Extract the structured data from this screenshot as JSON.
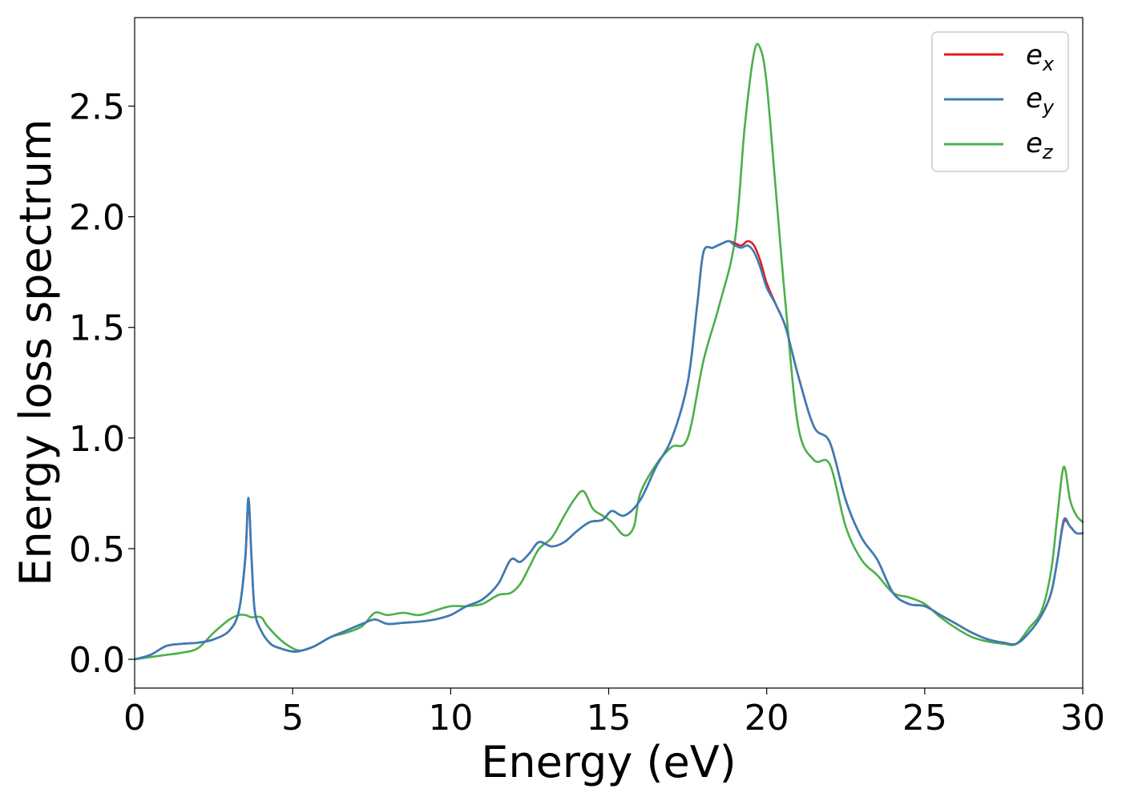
{
  "chart_data": {
    "type": "line",
    "title": "",
    "xlabel": "Energy (eV)",
    "ylabel": "Energy loss spectrum",
    "xlim": [
      0,
      30
    ],
    "ylim": [
      -0.13,
      2.9
    ],
    "xticks": [
      0,
      5,
      10,
      15,
      20,
      25,
      30
    ],
    "xtick_labels": [
      "0",
      "5",
      "10",
      "15",
      "20",
      "25",
      "30"
    ],
    "yticks": [
      0.0,
      0.5,
      1.0,
      1.5,
      2.0,
      2.5
    ],
    "ytick_labels": [
      "0.0",
      "0.5",
      "1.0",
      "1.5",
      "2.0",
      "2.5"
    ],
    "grid": false,
    "legend_position": "top-right",
    "series": [
      {
        "name": "e_x",
        "label_base": "e",
        "label_sub": "x",
        "color": "#e41a1c",
        "x": [
          0,
          0.5,
          1.0,
          1.5,
          2.0,
          2.5,
          3.0,
          3.3,
          3.5,
          3.6,
          3.7,
          3.8,
          4.0,
          4.3,
          4.6,
          5.0,
          5.3,
          5.7,
          6.2,
          6.7,
          7.2,
          7.6,
          8.0,
          8.5,
          9.0,
          9.5,
          10.0,
          10.5,
          11.0,
          11.5,
          11.9,
          12.2,
          12.5,
          12.8,
          13.2,
          13.6,
          14.0,
          14.4,
          14.8,
          15.1,
          15.5,
          16.0,
          16.5,
          17.0,
          17.5,
          17.8,
          18.0,
          18.3,
          18.6,
          18.8,
          19.0,
          19.2,
          19.4,
          19.6,
          19.8,
          20.0,
          20.3,
          20.6,
          21.0,
          21.5,
          22.0,
          22.5,
          23.0,
          23.5,
          24.0,
          24.5,
          25.0,
          25.5,
          26.0,
          26.5,
          27.0,
          27.5,
          27.9,
          28.3,
          28.7,
          29.0,
          29.2,
          29.4,
          29.6,
          29.8,
          30.0
        ],
        "y": [
          0.0,
          0.02,
          0.06,
          0.07,
          0.075,
          0.09,
          0.13,
          0.22,
          0.45,
          0.72,
          0.45,
          0.22,
          0.13,
          0.07,
          0.05,
          0.035,
          0.04,
          0.06,
          0.1,
          0.13,
          0.16,
          0.18,
          0.16,
          0.165,
          0.17,
          0.18,
          0.2,
          0.24,
          0.27,
          0.34,
          0.45,
          0.44,
          0.48,
          0.53,
          0.51,
          0.53,
          0.58,
          0.62,
          0.63,
          0.67,
          0.65,
          0.72,
          0.87,
          1.0,
          1.25,
          1.6,
          1.84,
          1.86,
          1.88,
          1.89,
          1.88,
          1.87,
          1.89,
          1.87,
          1.8,
          1.7,
          1.6,
          1.5,
          1.28,
          1.05,
          0.98,
          0.72,
          0.55,
          0.45,
          0.3,
          0.25,
          0.24,
          0.2,
          0.16,
          0.12,
          0.09,
          0.075,
          0.07,
          0.12,
          0.2,
          0.3,
          0.45,
          0.62,
          0.6,
          0.57,
          0.57
        ]
      },
      {
        "name": "e_y",
        "label_base": "e",
        "label_sub": "y",
        "color": "#377eb8",
        "x": [
          0,
          0.5,
          1.0,
          1.5,
          2.0,
          2.5,
          3.0,
          3.3,
          3.5,
          3.6,
          3.7,
          3.8,
          4.0,
          4.3,
          4.6,
          5.0,
          5.3,
          5.7,
          6.2,
          6.7,
          7.2,
          7.6,
          8.0,
          8.5,
          9.0,
          9.5,
          10.0,
          10.5,
          11.0,
          11.5,
          11.9,
          12.2,
          12.5,
          12.8,
          13.2,
          13.6,
          14.0,
          14.4,
          14.8,
          15.1,
          15.5,
          16.0,
          16.5,
          17.0,
          17.5,
          17.8,
          18.0,
          18.3,
          18.6,
          18.8,
          19.0,
          19.2,
          19.4,
          19.6,
          19.8,
          20.0,
          20.3,
          20.6,
          21.0,
          21.5,
          22.0,
          22.5,
          23.0,
          23.5,
          24.0,
          24.5,
          25.0,
          25.5,
          26.0,
          26.5,
          27.0,
          27.5,
          27.9,
          28.3,
          28.7,
          29.0,
          29.2,
          29.4,
          29.6,
          29.8,
          30.0
        ],
        "y": [
          0.0,
          0.02,
          0.06,
          0.07,
          0.075,
          0.09,
          0.13,
          0.22,
          0.46,
          0.73,
          0.46,
          0.22,
          0.13,
          0.07,
          0.05,
          0.035,
          0.04,
          0.06,
          0.1,
          0.13,
          0.16,
          0.18,
          0.16,
          0.165,
          0.17,
          0.18,
          0.2,
          0.24,
          0.27,
          0.34,
          0.45,
          0.44,
          0.48,
          0.53,
          0.51,
          0.53,
          0.58,
          0.62,
          0.63,
          0.67,
          0.65,
          0.72,
          0.87,
          1.0,
          1.25,
          1.6,
          1.84,
          1.86,
          1.88,
          1.89,
          1.87,
          1.86,
          1.87,
          1.84,
          1.77,
          1.68,
          1.6,
          1.5,
          1.28,
          1.05,
          0.98,
          0.72,
          0.55,
          0.45,
          0.3,
          0.25,
          0.24,
          0.2,
          0.16,
          0.12,
          0.09,
          0.075,
          0.07,
          0.12,
          0.2,
          0.3,
          0.45,
          0.63,
          0.6,
          0.57,
          0.57
        ]
      },
      {
        "name": "e_z",
        "label_base": "e",
        "label_sub": "z",
        "color": "#4daf4a",
        "x": [
          0,
          0.5,
          1.0,
          1.5,
          2.0,
          2.5,
          3.0,
          3.3,
          3.5,
          3.7,
          4.0,
          4.2,
          4.6,
          5.0,
          5.3,
          5.7,
          6.2,
          6.7,
          7.2,
          7.6,
          8.0,
          8.5,
          9.0,
          9.5,
          10.0,
          10.5,
          11.0,
          11.5,
          11.9,
          12.2,
          12.5,
          12.8,
          13.2,
          13.6,
          13.9,
          14.2,
          14.5,
          14.8,
          15.1,
          15.5,
          15.8,
          16.0,
          16.5,
          17.0,
          17.5,
          18.0,
          18.5,
          19.0,
          19.3,
          19.6,
          19.8,
          20.0,
          20.3,
          20.6,
          21.0,
          21.5,
          22.0,
          22.5,
          23.0,
          23.5,
          24.0,
          24.5,
          25.0,
          25.5,
          26.0,
          26.5,
          27.0,
          27.5,
          27.9,
          28.3,
          28.7,
          29.0,
          29.2,
          29.4,
          29.6,
          29.8,
          30.0
        ],
        "y": [
          0.0,
          0.01,
          0.02,
          0.03,
          0.05,
          0.12,
          0.18,
          0.2,
          0.2,
          0.19,
          0.19,
          0.15,
          0.09,
          0.05,
          0.04,
          0.06,
          0.1,
          0.12,
          0.15,
          0.21,
          0.2,
          0.21,
          0.2,
          0.22,
          0.24,
          0.24,
          0.25,
          0.29,
          0.3,
          0.34,
          0.42,
          0.5,
          0.55,
          0.65,
          0.72,
          0.76,
          0.68,
          0.65,
          0.62,
          0.56,
          0.6,
          0.75,
          0.88,
          0.96,
          1.0,
          1.35,
          1.6,
          1.9,
          2.4,
          2.74,
          2.76,
          2.6,
          2.1,
          1.6,
          1.05,
          0.9,
          0.88,
          0.6,
          0.45,
          0.38,
          0.3,
          0.28,
          0.25,
          0.19,
          0.14,
          0.1,
          0.08,
          0.07,
          0.07,
          0.14,
          0.22,
          0.4,
          0.65,
          0.87,
          0.72,
          0.65,
          0.62
        ]
      }
    ]
  }
}
